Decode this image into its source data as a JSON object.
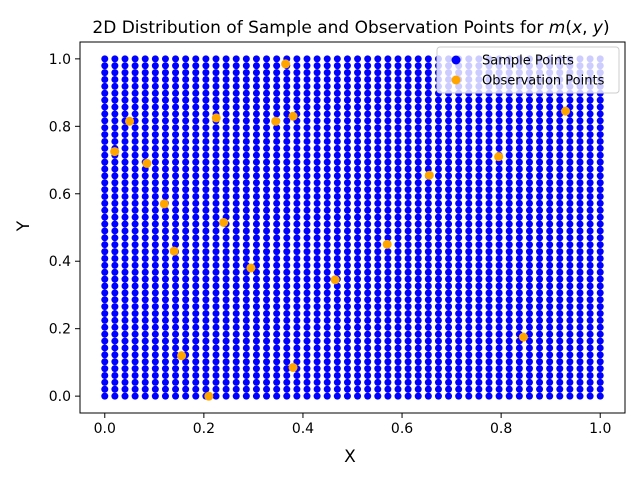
{
  "chart_data": {
    "type": "scatter",
    "title": "2D Distribution of Sample and Observation Points for m(x, y)",
    "title_parts": {
      "prefix": "2D Distribution of Sample and Observation Points for ",
      "fn": "m",
      "open": "(",
      "x": "x",
      "comma": ", ",
      "y": "y",
      "close": ")"
    },
    "xlabel": "X",
    "ylabel": "Y",
    "xlim": [
      -0.05,
      1.05
    ],
    "ylim": [
      -0.05,
      1.05
    ],
    "xticks": [
      0.0,
      0.2,
      0.4,
      0.6,
      0.8,
      1.0
    ],
    "yticks": [
      0.0,
      0.2,
      0.4,
      0.6,
      0.8,
      1.0
    ],
    "xtick_labels": [
      "0.0",
      "0.2",
      "0.4",
      "0.6",
      "0.8",
      "1.0"
    ],
    "ytick_labels": [
      "0.0",
      "0.2",
      "0.4",
      "0.6",
      "0.8",
      "1.0"
    ],
    "grid": false,
    "legend_position": "top-right",
    "series": [
      {
        "name": "Sample Points",
        "color": "#0000ff",
        "grid_x": [
          0.0,
          1.0
        ],
        "grid_y": [
          0.0,
          1.0
        ],
        "grid_n": 50
      },
      {
        "name": "Observation Points",
        "color": "#ffa500",
        "points": [
          [
            0.21,
            0.0
          ],
          [
            0.38,
            0.085
          ],
          [
            0.155,
            0.12
          ],
          [
            0.845,
            0.175
          ],
          [
            0.465,
            0.345
          ],
          [
            0.295,
            0.38
          ],
          [
            0.14,
            0.43
          ],
          [
            0.57,
            0.45
          ],
          [
            0.24,
            0.515
          ],
          [
            0.12,
            0.57
          ],
          [
            0.655,
            0.655
          ],
          [
            0.085,
            0.69
          ],
          [
            0.795,
            0.71
          ],
          [
            0.02,
            0.725
          ],
          [
            0.05,
            0.815
          ],
          [
            0.345,
            0.815
          ],
          [
            0.225,
            0.825
          ],
          [
            0.38,
            0.83
          ],
          [
            0.93,
            0.845
          ],
          [
            0.365,
            0.985
          ]
        ]
      }
    ]
  }
}
